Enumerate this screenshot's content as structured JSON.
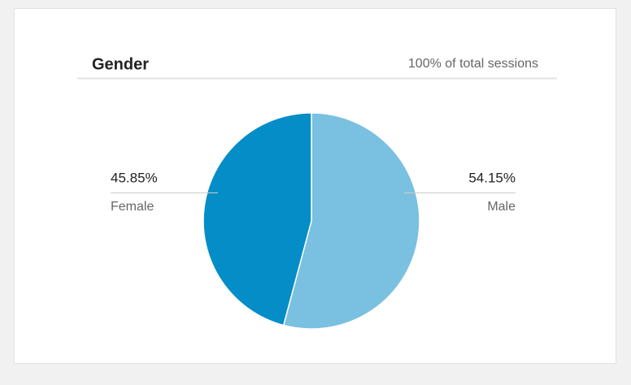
{
  "chart_data": {
    "type": "pie",
    "title": "Gender",
    "subtitle": "100% of total sessions",
    "categories": [
      "Male",
      "Female"
    ],
    "values": [
      54.15,
      45.85
    ],
    "value_labels": [
      "54.15%",
      "45.85%"
    ],
    "colors": [
      "#7ac0e0",
      "#058dc7"
    ]
  }
}
